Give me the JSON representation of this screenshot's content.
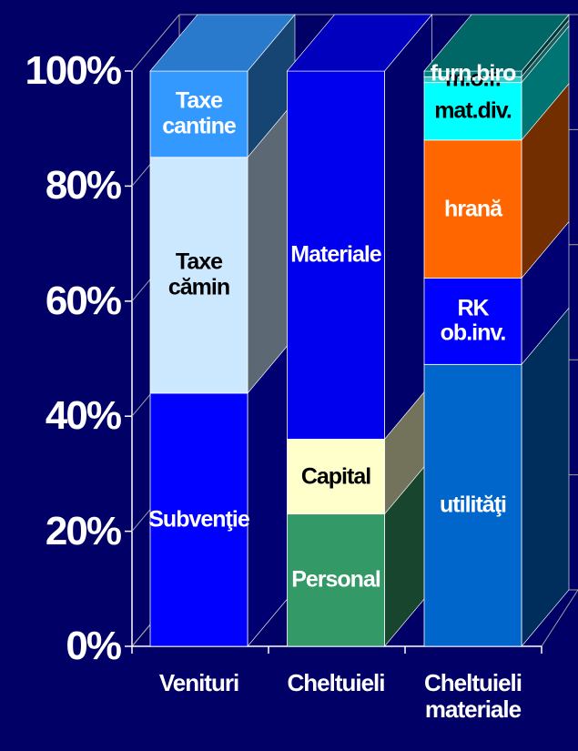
{
  "chart_data": {
    "type": "stacked-bar-3d",
    "categories": [
      "Venituri",
      "Cheltuieli",
      "Cheltuieli materiale"
    ],
    "stacks": [
      [
        {
          "name": "Subvenţie",
          "value": 44,
          "color": "#0000ff"
        },
        {
          "name": "Taxe cămin",
          "value": 41,
          "color": "#cce8ff"
        },
        {
          "name": "Taxe cantine",
          "value": 15,
          "color": "#3399ff"
        }
      ],
      [
        {
          "name": "Personal",
          "value": 23,
          "color": "#339966"
        },
        {
          "name": "Capital",
          "value": 13,
          "color": "#ffffcc"
        },
        {
          "name": "Materiale",
          "value": 64,
          "color": "#0000ee"
        }
      ],
      [
        {
          "name": "utilităţi",
          "value": 49,
          "color": "#0066cc"
        },
        {
          "name": "RK ob.inv.",
          "value": 15,
          "color": "#0000ff"
        },
        {
          "name": "hrană",
          "value": 24,
          "color": "#ff6600"
        },
        {
          "name": "mat.div.",
          "value": 10,
          "color": "#00ffff"
        },
        {
          "name": "m.o.f.",
          "value": 1,
          "color": "#33cccc"
        },
        {
          "name": "furn.biro",
          "value": 1,
          "color": "#008080"
        }
      ]
    ],
    "ylim": [
      0,
      100
    ],
    "yticks": [
      {
        "value": 0,
        "label": "0%"
      },
      {
        "value": 20,
        "label": "20%"
      },
      {
        "value": 40,
        "label": "40%"
      },
      {
        "value": 60,
        "label": "60%"
      },
      {
        "value": 80,
        "label": "80%"
      },
      {
        "value": 100,
        "label": "100%"
      }
    ],
    "grid": true
  }
}
